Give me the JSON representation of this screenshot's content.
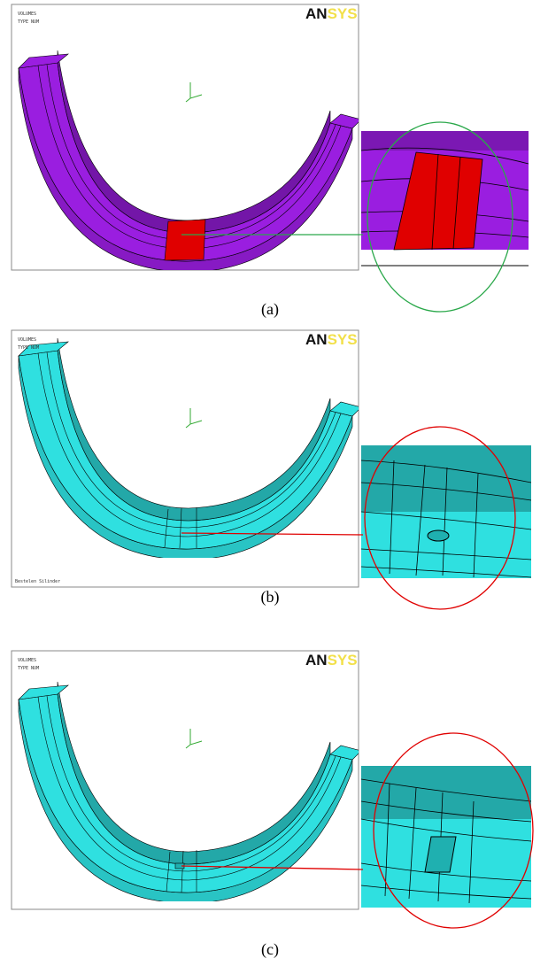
{
  "figure": {
    "panels": [
      {
        "label": "(a)",
        "header": [
          "VOLUMES",
          "TYPE NUM"
        ],
        "logo": [
          "AN",
          "SYS"
        ]
      },
      {
        "label": "(b)",
        "header": [
          "VOLUMES",
          "TYPE NUM"
        ],
        "logo": [
          "AN",
          "SYS"
        ],
        "footer": "Bestelen Silinder"
      },
      {
        "label": "(c)",
        "header": [
          "VOLUMES",
          "TYPE NUM"
        ],
        "logo": [
          "AN",
          "SYS"
        ]
      }
    ]
  }
}
